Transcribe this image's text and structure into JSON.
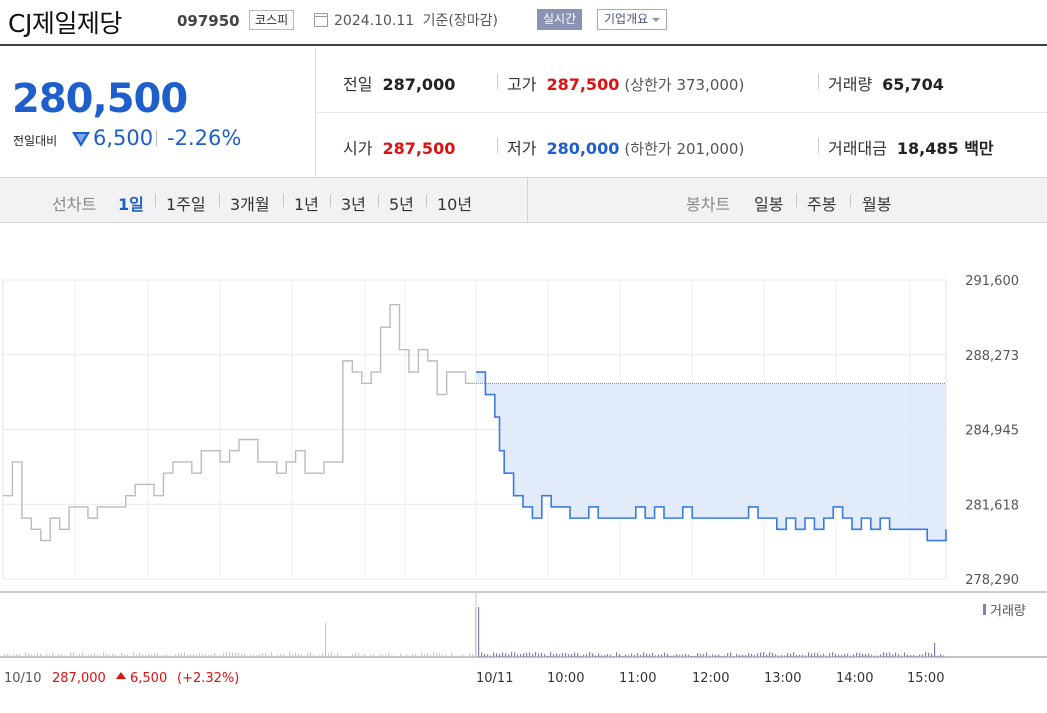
{
  "header": {
    "company": "CJ제일제당",
    "code": "097950",
    "market": "코스피",
    "date": "2024.10.11",
    "date_suffix": "기준(장마감)",
    "realtime_label": "실시간",
    "overview_label": "기업개요"
  },
  "price": {
    "current": "280,500",
    "change_label": "전일대비",
    "change_amount": "6,500",
    "change_pct": "-2.26%",
    "direction": "down"
  },
  "stats": [
    {
      "label": "전일",
      "value": "287,000"
    },
    {
      "label": "고가",
      "value": "287,500",
      "paren": "(상한가 373,000)"
    },
    {
      "label": "거래량",
      "value": "65,704"
    },
    {
      "label": "시가",
      "value": "287,500"
    },
    {
      "label": "저가",
      "value": "280,000",
      "paren": "(하한가 201,000)"
    },
    {
      "label": "거래대금",
      "value": "18,485 백만"
    }
  ],
  "period_bar": {
    "line_chart_label": "선차트",
    "line_periods": [
      "1일",
      "1주일",
      "3개월",
      "1년",
      "3년",
      "5년",
      "10년"
    ],
    "selected_period": "1일",
    "candle_chart_label": "봉차트",
    "candle_periods": [
      "일봉",
      "주봉",
      "월봉"
    ]
  },
  "colors": {
    "blue": "#1f5fcb",
    "red": "#dd1111",
    "prev_line": "#bbbbbb",
    "fill": "#dde8f8",
    "volume": "#8b7bb5"
  },
  "chart_data": {
    "type": "line",
    "y_ticks": [
      "291,600",
      "288,273",
      "284,945",
      "281,618",
      "278,290"
    ],
    "ylim": [
      278290,
      291600
    ],
    "x_ticks": [
      "10/10",
      "10/11",
      "10:00",
      "11:00",
      "12:00",
      "13:00",
      "14:00",
      "15:00"
    ],
    "prev_close": 287000,
    "prev_day_label": "10/10",
    "prev_day_close": "287,000",
    "prev_day_change": "6,500",
    "prev_day_change_pct": "(+2.32%)",
    "volume_label": "거래량",
    "series": [
      {
        "x": [
          0,
          0.01,
          0.02,
          0.03,
          0.04,
          0.05,
          0.06,
          0.07,
          0.08,
          0.09,
          0.1,
          0.11,
          0.12,
          0.13,
          0.14,
          0.15,
          0.16,
          0.17,
          0.18,
          0.19,
          0.2,
          0.21,
          0.22,
          0.23,
          0.24,
          0.25,
          0.26,
          0.27,
          0.28,
          0.29,
          0.3,
          0.31,
          0.32,
          0.33,
          0.34,
          0.35,
          0.36,
          0.37,
          0.38,
          0.39,
          0.4,
          0.41,
          0.42,
          0.43,
          0.44,
          0.45,
          0.46,
          0.47,
          0.48,
          0.49,
          0.5
        ],
        "values": [
          282000,
          283500,
          281000,
          280500,
          280000,
          281000,
          280500,
          281500,
          281500,
          281000,
          281500,
          281500,
          281500,
          282000,
          282500,
          282500,
          282000,
          283000,
          283500,
          283500,
          283000,
          284000,
          284000,
          283500,
          284000,
          284500,
          284500,
          283500,
          283500,
          283000,
          283500,
          284000,
          283000,
          283000,
          283500,
          283500,
          288000,
          287500,
          287000,
          287500,
          289500,
          290500,
          288500,
          287500,
          288500,
          288000,
          286500,
          287500,
          287500,
          287000,
          287000
        ]
      },
      {
        "x": [
          0,
          0.02,
          0.04,
          0.05,
          0.06,
          0.08,
          0.1,
          0.12,
          0.14,
          0.16,
          0.18,
          0.2,
          0.22,
          0.24,
          0.26,
          0.28,
          0.3,
          0.32,
          0.34,
          0.36,
          0.38,
          0.4,
          0.42,
          0.44,
          0.46,
          0.48,
          0.5,
          0.52,
          0.54,
          0.56,
          0.58,
          0.6,
          0.62,
          0.64,
          0.66,
          0.68,
          0.7,
          0.72,
          0.74,
          0.76,
          0.78,
          0.8,
          0.82,
          0.84,
          0.86,
          0.88,
          0.9,
          0.92,
          0.94,
          0.96,
          0.98,
          1
        ],
        "values": [
          287500,
          286500,
          285500,
          284000,
          283000,
          282000,
          281500,
          281000,
          282000,
          281500,
          281500,
          281000,
          281000,
          281500,
          281000,
          281000,
          281000,
          281000,
          281500,
          281000,
          281500,
          281000,
          281000,
          281500,
          281000,
          281000,
          281000,
          281000,
          281000,
          281000,
          281500,
          281000,
          281000,
          280500,
          281000,
          280500,
          281000,
          280500,
          281000,
          281500,
          281000,
          280500,
          281000,
          280500,
          281000,
          280500,
          280500,
          280500,
          280500,
          280000,
          280000,
          280500
        ]
      }
    ]
  }
}
